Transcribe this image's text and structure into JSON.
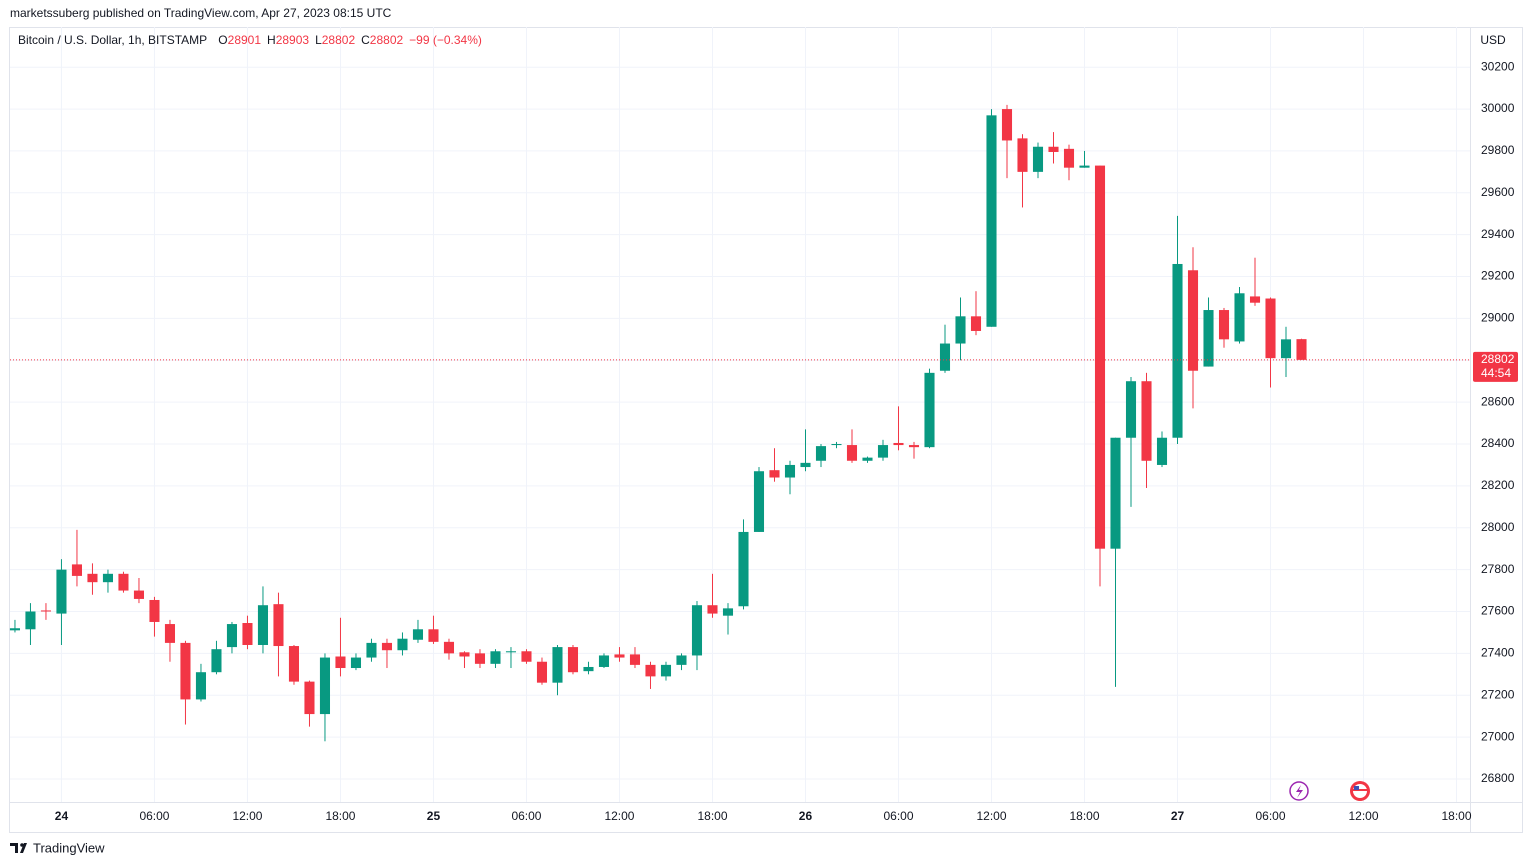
{
  "header": {
    "published": "marketssuberg published on TradingView.com, Apr 27, 2023 08:15 UTC"
  },
  "footer": {
    "brand": "TradingView"
  },
  "chart_data": {
    "type": "candlestick",
    "legend": {
      "symbol": "Bitcoin / U.S. Dollar, 1h, BITSTAMP",
      "fields": [
        {
          "label": "O",
          "value": "28901"
        },
        {
          "label": "H",
          "value": "28903"
        },
        {
          "label": "L",
          "value": "28802"
        },
        {
          "label": "C",
          "value": "28802"
        }
      ],
      "change": "−99 (−0.34%)"
    },
    "currency": "USD",
    "last_price": 28802,
    "countdown": "44:54",
    "up_color": "#089981",
    "down_color": "#f23645",
    "grid": true,
    "xlim": [
      -0.32,
      93.87
    ],
    "xticks": [
      {
        "value": 3,
        "label": "24"
      },
      {
        "value": 9,
        "label": "06:00"
      },
      {
        "value": 15,
        "label": "12:00"
      },
      {
        "value": 21,
        "label": "18:00"
      },
      {
        "value": 27,
        "label": "25"
      },
      {
        "value": 33,
        "label": "06:00"
      },
      {
        "value": 39,
        "label": "12:00"
      },
      {
        "value": 45,
        "label": "18:00"
      },
      {
        "value": 51,
        "label": "26"
      },
      {
        "value": 57,
        "label": "06:00"
      },
      {
        "value": 63,
        "label": "12:00"
      },
      {
        "value": 69,
        "label": "18:00"
      },
      {
        "value": 75,
        "label": "27"
      },
      {
        "value": 81,
        "label": "06:00"
      },
      {
        "value": 87,
        "label": "12:00"
      },
      {
        "value": 93,
        "label": "18:00"
      }
    ],
    "ylim": [
      26690,
      30392
    ],
    "yticks": [
      26800,
      27000,
      27200,
      27400,
      27600,
      27800,
      28000,
      28200,
      28400,
      28600,
      28800,
      29000,
      29200,
      29400,
      29600,
      29800,
      30000,
      30200
    ],
    "open": [
      27510,
      27515,
      27605,
      27590,
      27825,
      27780,
      27740,
      27780,
      27700,
      27655,
      27540,
      27450,
      27180,
      27310,
      27430,
      27545,
      27440,
      27635,
      27435,
      27265,
      27110,
      27385,
      27330,
      27380,
      27450,
      27415,
      27465,
      27515,
      27455,
      27405,
      27400,
      27350,
      27405,
      27410,
      27360,
      27260,
      27430,
      27315,
      27335,
      27395,
      27395,
      27345,
      27290,
      27345,
      27390,
      27630,
      27580,
      27625,
      27980,
      28275,
      28240,
      28290,
      28320,
      28395,
      28395,
      28320,
      28335,
      28405,
      28395,
      28385,
      28750,
      28880,
      29010,
      28960,
      30000,
      29860,
      29700,
      29820,
      29810,
      29720,
      29730,
      27900,
      28430,
      28700,
      28300,
      28430,
      29230,
      28770,
      29040,
      28890,
      29105,
      29095,
      28810,
      28901
    ],
    "high": [
      27560,
      27640,
      27640,
      27850,
      27990,
      27830,
      27800,
      27790,
      27760,
      27670,
      27560,
      27460,
      27350,
      27460,
      27550,
      27580,
      27720,
      27690,
      27440,
      27270,
      27400,
      27570,
      27400,
      27470,
      27470,
      27500,
      27560,
      27580,
      27470,
      27410,
      27420,
      27420,
      27430,
      27420,
      27380,
      27440,
      27440,
      27360,
      27400,
      27430,
      27430,
      27360,
      27360,
      27400,
      27650,
      27780,
      27640,
      28040,
      28290,
      28380,
      28320,
      28470,
      28400,
      28410,
      28470,
      28340,
      28420,
      28580,
      28410,
      28760,
      28970,
      29100,
      29130,
      30000,
      30020,
      29880,
      29840,
      29890,
      29830,
      29800,
      29730,
      28430,
      28720,
      28740,
      28460,
      29490,
      29340,
      29100,
      29050,
      29150,
      29290,
      29100,
      28960,
      28903
    ],
    "low": [
      27500,
      27440,
      27560,
      27440,
      27720,
      27680,
      27690,
      27690,
      27640,
      27480,
      27360,
      27060,
      27170,
      27300,
      27400,
      27420,
      27400,
      27290,
      27250,
      27050,
      26980,
      27290,
      27320,
      27360,
      27330,
      27390,
      27450,
      27445,
      27370,
      27330,
      27330,
      27330,
      27330,
      27350,
      27250,
      27200,
      27300,
      27300,
      27330,
      27360,
      27330,
      27230,
      27270,
      27320,
      27320,
      27570,
      27490,
      27610,
      27980,
      28220,
      28160,
      28270,
      28290,
      28380,
      28310,
      28310,
      28320,
      28370,
      28330,
      28380,
      28740,
      28800,
      28920,
      28960,
      29670,
      29530,
      29670,
      29740,
      29660,
      29720,
      27720,
      27240,
      28100,
      28190,
      28290,
      28400,
      28570,
      28770,
      28860,
      28880,
      29060,
      28670,
      28720,
      28802
    ],
    "close": [
      27520,
      27600,
      27600,
      27800,
      27770,
      27740,
      27780,
      27700,
      27660,
      27550,
      27450,
      27180,
      27310,
      27420,
      27540,
      27440,
      27630,
      27435,
      27265,
      27110,
      27380,
      27330,
      27380,
      27450,
      27415,
      27470,
      27515,
      27455,
      27400,
      27385,
      27350,
      27410,
      27410,
      27360,
      27260,
      27430,
      27310,
      27335,
      27390,
      27380,
      27345,
      27290,
      27345,
      27390,
      27630,
      27590,
      27615,
      27980,
      28270,
      28240,
      28300,
      28310,
      28390,
      28400,
      28320,
      28335,
      28395,
      28395,
      28385,
      28740,
      28880,
      29010,
      28940,
      29970,
      29850,
      29700,
      29820,
      29795,
      29720,
      29730,
      27900,
      28430,
      28700,
      28320,
      28430,
      29260,
      28750,
      29040,
      28900,
      29120,
      29075,
      28810,
      28900,
      28802
    ]
  }
}
